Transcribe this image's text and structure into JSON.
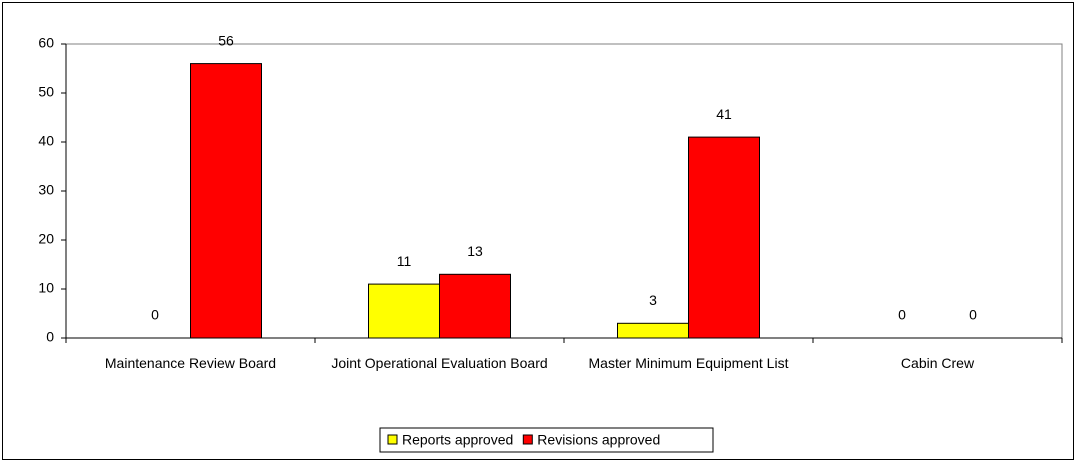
{
  "chart_data": {
    "type": "bar",
    "categories": [
      "Maintenance Review Board",
      "Joint Operational Evaluation Board",
      "Master Minimum Equipment List",
      "Cabin Crew"
    ],
    "series": [
      {
        "name": "Reports approved",
        "color": "#ffff00",
        "values": [
          0,
          11,
          3,
          0
        ]
      },
      {
        "name": "Revisions approved",
        "color": "#ff0000",
        "values": [
          56,
          13,
          41,
          0
        ]
      }
    ],
    "ylim": [
      0,
      60
    ],
    "yticks": [
      0,
      10,
      20,
      30,
      40,
      50,
      60
    ],
    "grid": false,
    "legend": "bottom"
  }
}
